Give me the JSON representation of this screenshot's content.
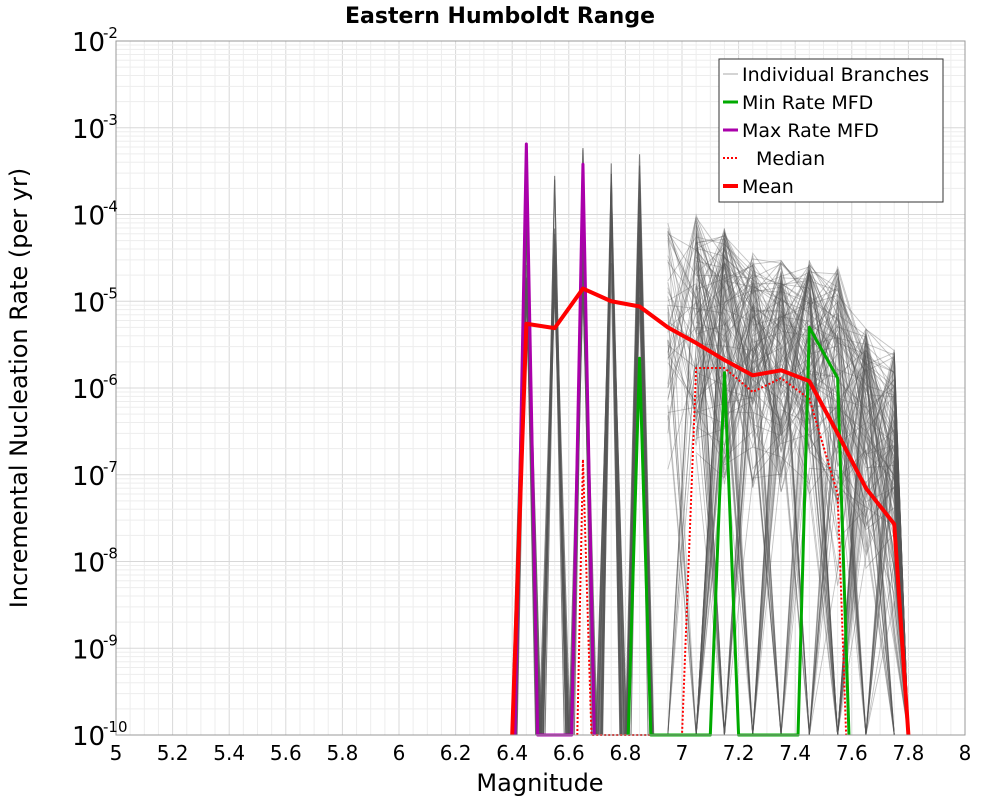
{
  "chart_data": {
    "type": "line",
    "title": "Eastern Humboldt Range",
    "xlabel": "Magnitude",
    "ylabel": "Incremental Nucleation Rate (per yr)",
    "xlim": [
      5,
      8
    ],
    "ylim": [
      1e-10,
      0.01
    ],
    "yscale": "log",
    "grid": true,
    "legend_position": "top-right",
    "xticks": [
      "5",
      "5.2",
      "5.4",
      "5.6",
      "5.8",
      "6",
      "6.2",
      "6.4",
      "6.6",
      "6.8",
      "7",
      "7.2",
      "7.4",
      "7.6",
      "7.8",
      "8"
    ],
    "yticks": [
      {
        "value": 1e-10,
        "base": "10",
        "exp": "-10"
      },
      {
        "value": 1e-09,
        "base": "10",
        "exp": "-9"
      },
      {
        "value": 1e-08,
        "base": "10",
        "exp": "-8"
      },
      {
        "value": 1e-07,
        "base": "10",
        "exp": "-7"
      },
      {
        "value": 1e-06,
        "base": "10",
        "exp": "-6"
      },
      {
        "value": 1e-05,
        "base": "10",
        "exp": "-5"
      },
      {
        "value": 0.0001,
        "base": "10",
        "exp": "-4"
      },
      {
        "value": 0.001,
        "base": "10",
        "exp": "-3"
      },
      {
        "value": 0.01,
        "base": "10",
        "exp": "-2"
      }
    ],
    "series": [
      {
        "name": "Mean",
        "color": "#ff0000",
        "style": "solid",
        "x": [
          6.4,
          6.45,
          6.55,
          6.65,
          6.75,
          6.85,
          6.95,
          7.05,
          7.15,
          7.25,
          7.35,
          7.45,
          7.55,
          7.65,
          7.75,
          7.8
        ],
        "y": [
          1e-10,
          5.5e-06,
          4.9e-06,
          1.4e-05,
          1e-05,
          8.7e-06,
          5e-06,
          3.3e-06,
          2.1e-06,
          1.4e-06,
          1.6e-06,
          1.2e-06,
          3e-07,
          7e-08,
          2.7e-08,
          1e-10
        ]
      },
      {
        "name": "Median",
        "color": "#ff0000",
        "style": "dotted",
        "x": [
          6.63,
          6.65,
          6.68,
          7.0,
          7.05,
          7.15,
          7.25,
          7.35,
          7.45,
          7.55,
          7.58
        ],
        "y": [
          1e-10,
          1.5e-07,
          1e-10,
          1e-10,
          1.7e-06,
          1.7e-06,
          9e-07,
          1.3e-06,
          7.5e-07,
          6e-08,
          1e-10
        ]
      },
      {
        "name": "Min Rate MFD",
        "color": "#00aa00",
        "style": "solid",
        "x": [
          6.81,
          6.85,
          6.89,
          7.1,
          7.15,
          7.2,
          7.41,
          7.45,
          7.55,
          7.59
        ],
        "y": [
          1e-10,
          2.2e-06,
          1e-10,
          1e-10,
          1.5e-06,
          1e-10,
          1e-10,
          5e-06,
          1.3e-06,
          1e-10
        ]
      },
      {
        "name": "Max Rate MFD",
        "color": "#aa00aa",
        "style": "solid",
        "x": [
          6.41,
          6.45,
          6.49,
          6.61,
          6.65,
          6.69
        ],
        "y": [
          1e-10,
          0.00065,
          1e-10,
          1e-10,
          0.00038,
          1e-10
        ]
      }
    ],
    "branches": {
      "name": "Individual Branches",
      "color": "#555555",
      "spikes": [
        {
          "x": 6.45,
          "peak": 0.00015
        },
        {
          "x": 6.55,
          "peak": 0.00045
        },
        {
          "x": 6.65,
          "peak": 0.0007
        },
        {
          "x": 6.75,
          "peak": 0.0005
        },
        {
          "x": 6.85,
          "peak": 0.0005
        }
      ],
      "band_x": [
        6.95,
        7.05,
        7.15,
        7.25,
        7.35,
        7.45,
        7.55,
        7.65,
        7.75
      ],
      "band_high": [
        0.0001,
        0.0001,
        7e-05,
        4e-05,
        3e-05,
        3e-05,
        2.5e-05,
        5e-06,
        3e-06
      ],
      "band_low": [
        1e-07,
        1e-07,
        5e-08,
        5e-08,
        5e-08,
        5e-08,
        5e-09,
        5e-09,
        1e-09
      ]
    },
    "legend": [
      "Individual Branches",
      "Min Rate MFD",
      "Max Rate MFD",
      "Median",
      "Mean"
    ]
  }
}
